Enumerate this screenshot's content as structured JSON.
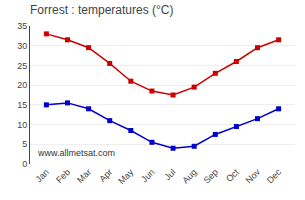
{
  "chart_data": {
    "type": "line",
    "title": "Forrest : temperatures (°C)",
    "categories": [
      "Jan",
      "Feb",
      "Mar",
      "Apr",
      "May",
      "Jun",
      "Jul",
      "Aug",
      "Sep",
      "Oct",
      "Nov",
      "Dec"
    ],
    "series": [
      {
        "color": "#cc0000",
        "marker": "square",
        "values": [
          33,
          31.5,
          29.5,
          25.5,
          21,
          18.5,
          17.5,
          19.5,
          23,
          26,
          29.5,
          31.5
        ]
      },
      {
        "color": "#0000cc",
        "marker": "square",
        "values": [
          15,
          15.5,
          14,
          11,
          8.5,
          5.5,
          4,
          4.5,
          7.5,
          9.5,
          11.5,
          14
        ]
      }
    ],
    "ylim": [
      0,
      35
    ],
    "yticks": [
      0,
      5,
      10,
      15,
      20,
      25,
      30,
      35
    ],
    "grid": true,
    "annotations": [
      "www.allmetsat.com"
    ]
  }
}
